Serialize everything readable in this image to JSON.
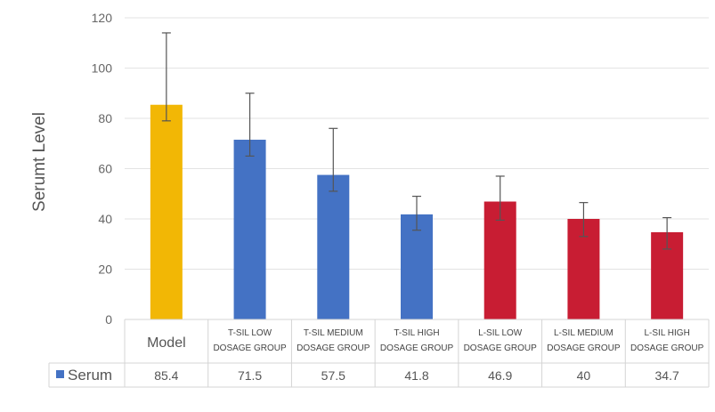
{
  "chart_data": {
    "type": "bar",
    "title": "",
    "xlabel": "",
    "ylabel": "Serumt Level",
    "ylim": [
      0,
      120
    ],
    "yticks": [
      0,
      20,
      40,
      60,
      80,
      100,
      120
    ],
    "grid": true,
    "categories": [
      [
        "Model"
      ],
      [
        "T-SIL LOW",
        "DOSAGE GROUP"
      ],
      [
        "T-SIL MEDIUM",
        "DOSAGE GROUP"
      ],
      [
        "T-SIL HIGH",
        "DOSAGE GROUP"
      ],
      [
        "L-SIL LOW",
        "DOSAGE GROUP"
      ],
      [
        "L-SIL MEDIUM",
        "DOSAGE GROUP"
      ],
      [
        "L-SIL HIGH",
        "DOSAGE GROUP"
      ]
    ],
    "series": [
      {
        "name": "Serum",
        "legend_color": "#4472c4",
        "values": [
          85.4,
          71.5,
          57.5,
          41.8,
          46.9,
          40,
          34.7
        ],
        "value_labels": [
          "85.4",
          "71.5",
          "57.5",
          "41.8",
          "46.9",
          "40",
          "34.7"
        ],
        "colors": [
          "#f2b705",
          "#4472c4",
          "#4472c4",
          "#4472c4",
          "#c81d33",
          "#c81d33",
          "#c81d33"
        ],
        "error_upper": [
          114,
          90,
          76,
          49,
          57,
          46.5,
          40.5
        ],
        "error_lower": [
          79,
          65,
          51,
          35.5,
          39.5,
          33,
          28
        ]
      }
    ],
    "data_table": true
  }
}
